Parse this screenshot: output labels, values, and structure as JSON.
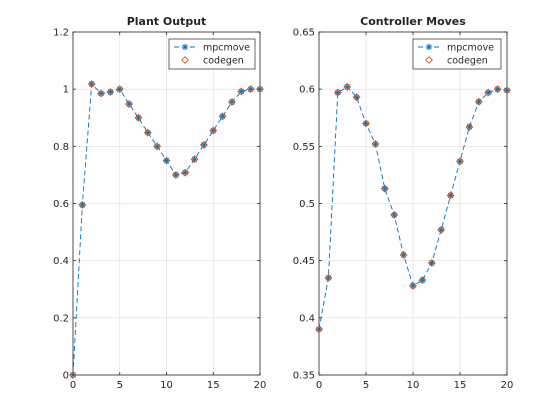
{
  "figure": {
    "background": "#ffffff"
  },
  "chart_data": [
    {
      "type": "line",
      "title": "Plant Output",
      "xlabel": "",
      "ylabel": "",
      "xlim": [
        0,
        20
      ],
      "ylim": [
        0,
        1.2
      ],
      "xticks": [
        0,
        5,
        10,
        15,
        20
      ],
      "yticks": [
        0,
        0.2,
        0.4,
        0.6,
        0.8,
        1,
        1.2
      ],
      "xtick_labels": [
        "0",
        "5",
        "10",
        "15",
        "20"
      ],
      "ytick_labels": [
        "0",
        "0.2",
        "0.4",
        "0.6",
        "0.8",
        "1",
        "1.2"
      ],
      "grid": true,
      "legend_position": "top-right",
      "x": [
        0,
        1,
        2,
        3,
        4,
        5,
        6,
        7,
        8,
        9,
        10,
        11,
        12,
        13,
        14,
        15,
        16,
        17,
        18,
        19,
        20
      ],
      "series": [
        {
          "name": "mpcmove",
          "marker": "star",
          "line": "dashed",
          "color": "#0072bd",
          "values": [
            0.0,
            0.595,
            1.018,
            0.985,
            0.99,
            1.0,
            0.948,
            0.9,
            0.848,
            0.8,
            0.75,
            0.7,
            0.708,
            0.755,
            0.805,
            0.855,
            0.905,
            0.955,
            0.992,
            1.0,
            1.0
          ]
        },
        {
          "name": "codegen",
          "marker": "diamond",
          "line": "none",
          "color": "#d95319",
          "values": [
            0.0,
            0.595,
            1.018,
            0.985,
            0.99,
            1.0,
            0.948,
            0.9,
            0.848,
            0.8,
            0.75,
            0.7,
            0.708,
            0.755,
            0.805,
            0.855,
            0.905,
            0.955,
            0.992,
            1.0,
            1.0
          ]
        }
      ]
    },
    {
      "type": "line",
      "title": "Controller Moves",
      "xlabel": "",
      "ylabel": "",
      "xlim": [
        0,
        20
      ],
      "ylim": [
        0.35,
        0.65
      ],
      "xticks": [
        0,
        5,
        10,
        15,
        20
      ],
      "yticks": [
        0.35,
        0.4,
        0.45,
        0.5,
        0.55,
        0.6,
        0.65
      ],
      "xtick_labels": [
        "0",
        "5",
        "10",
        "15",
        "20"
      ],
      "ytick_labels": [
        "0.35",
        "0.4",
        "0.45",
        "0.5",
        "0.55",
        "0.6",
        "0.65"
      ],
      "grid": true,
      "legend_position": "top-right",
      "x": [
        0,
        1,
        2,
        3,
        4,
        5,
        6,
        7,
        8,
        9,
        10,
        11,
        12,
        13,
        14,
        15,
        16,
        17,
        18,
        19,
        20
      ],
      "series": [
        {
          "name": "mpcmove",
          "marker": "star",
          "line": "dashed",
          "color": "#0072bd",
          "values": [
            0.39,
            0.435,
            0.597,
            0.602,
            0.593,
            0.57,
            0.552,
            0.513,
            0.49,
            0.455,
            0.428,
            0.433,
            0.448,
            0.477,
            0.507,
            0.537,
            0.567,
            0.589,
            0.597,
            0.6,
            0.599
          ]
        },
        {
          "name": "codegen",
          "marker": "diamond",
          "line": "none",
          "color": "#d95319",
          "values": [
            0.39,
            0.435,
            0.597,
            0.602,
            0.593,
            0.57,
            0.552,
            0.513,
            0.49,
            0.455,
            0.428,
            0.433,
            0.448,
            0.477,
            0.507,
            0.537,
            0.567,
            0.589,
            0.597,
            0.6,
            0.599
          ]
        }
      ]
    }
  ]
}
